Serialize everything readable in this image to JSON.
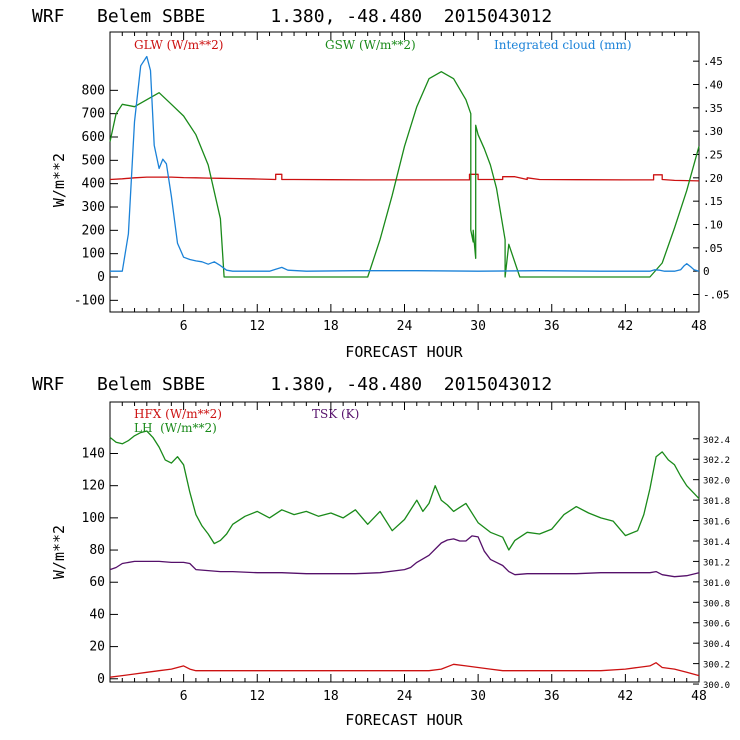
{
  "chart_data": [
    {
      "type": "line",
      "title": "WRF   Belem SBBE      1.380, -48.480  2015043012",
      "xlabel": "FORECAST HOUR",
      "ylabel": "W/m**2",
      "xlim": [
        0,
        48
      ],
      "ylim": [
        -150,
        1050
      ],
      "y2lim": [
        -0.0875,
        0.5125
      ],
      "x_ticks": [
        "6",
        "12",
        "18",
        "24",
        "30",
        "36",
        "42",
        "48"
      ],
      "y_ticks": [
        "800",
        "700",
        "600",
        "500",
        "400",
        "300",
        "200",
        "100",
        "0",
        "-100"
      ],
      "y2_ticks": [
        ".45",
        ".40",
        ".35",
        ".30",
        ".25",
        ".20",
        ".15",
        ".10",
        ".05",
        "0",
        "-.05"
      ],
      "legend": [
        "GLW (W/m**2)",
        "GSW (W/m**2)",
        "Integrated cloud (mm)"
      ],
      "colors": {
        "GLW": "#cc1111",
        "GSW": "#1a8a1a",
        "CLD": "#1b82d8"
      },
      "series": [
        {
          "name": "GLW (W/m**2)",
          "axis": "left",
          "x": [
            0,
            1,
            2,
            3,
            4,
            5,
            6,
            7,
            8,
            9,
            10,
            12,
            13.5,
            13.5,
            14,
            14,
            15,
            18,
            21,
            24,
            26,
            28,
            29.3,
            29.3,
            30,
            30,
            31,
            32,
            32,
            33,
            34,
            34,
            35,
            38,
            42,
            44.3,
            44.3,
            45,
            45,
            46,
            48
          ],
          "y": [
            418,
            421,
            425,
            428,
            428,
            428,
            426,
            425,
            424,
            423,
            422,
            420,
            418,
            440,
            440,
            418,
            418,
            417,
            416,
            416,
            416,
            416,
            416,
            440,
            440,
            418,
            418,
            418,
            430,
            430,
            418,
            425,
            418,
            417,
            416,
            416,
            438,
            438,
            418,
            414,
            412
          ]
        },
        {
          "name": "GSW (W/m**2)",
          "axis": "left",
          "x": [
            0,
            0.5,
            1,
            2,
            3,
            4,
            5,
            6,
            7,
            8,
            9,
            9.3,
            10,
            12,
            14,
            16,
            18,
            20,
            21,
            22,
            23,
            24,
            25,
            26,
            27,
            28,
            29,
            29.4,
            29.4,
            29.6,
            29.6,
            29.8,
            29.8,
            30,
            30.5,
            31,
            31.5,
            32.2,
            32.2,
            32.5,
            33.4,
            35,
            40,
            44,
            45,
            46,
            47,
            48
          ],
          "y": [
            580,
            700,
            740,
            730,
            760,
            790,
            740,
            690,
            610,
            480,
            250,
            0,
            0,
            0,
            0,
            0,
            0,
            0,
            0,
            160,
            350,
            560,
            730,
            850,
            880,
            850,
            760,
            700,
            200,
            150,
            200,
            80,
            650,
            610,
            550,
            480,
            380,
            160,
            0,
            140,
            0,
            0,
            0,
            0,
            60,
            210,
            370,
            560
          ]
        },
        {
          "name": "Integrated cloud (mm)",
          "axis": "right",
          "x": [
            0,
            1,
            1.5,
            2,
            2.5,
            3,
            3.3,
            3.6,
            4,
            4.3,
            4.6,
            5,
            5.5,
            6,
            6.5,
            7,
            7.5,
            8,
            8.5,
            9,
            9.5,
            10,
            13,
            13.5,
            14,
            14.5,
            16,
            20,
            25,
            30,
            35,
            40,
            44,
            44.4,
            44.8,
            45.2,
            46,
            46.5,
            46.8,
            47,
            47.3,
            47.6,
            48
          ],
          "y": [
            0,
            0,
            0.08,
            0.32,
            0.44,
            0.46,
            0.43,
            0.27,
            0.22,
            0.24,
            0.23,
            0.16,
            0.06,
            0.03,
            0.025,
            0.022,
            0.02,
            0.015,
            0.02,
            0.012,
            0.002,
            0,
            0,
            0.004,
            0.008,
            0.002,
            0,
            0.001,
            0.001,
            0,
            0.001,
            0,
            0,
            0.003,
            0.002,
            0,
            0,
            0.003,
            0.012,
            0.016,
            0.01,
            0.003,
            0
          ]
        }
      ]
    },
    {
      "type": "line",
      "title": "WRF   Belem SBBE      1.380, -48.480  2015043012",
      "xlabel": "FORECAST HOUR",
      "ylabel": "W/m**2",
      "xlim": [
        0,
        48
      ],
      "ylim": [
        -2,
        172
      ],
      "y2lim": [
        300.02,
        302.76
      ],
      "x_ticks": [
        "6",
        "12",
        "18",
        "24",
        "30",
        "36",
        "42",
        "48"
      ],
      "y_ticks": [
        "140",
        "120",
        "100",
        "80",
        "60",
        "40",
        "20",
        "0"
      ],
      "y2_ticks": [
        "302.4",
        "302.2",
        "302.0",
        "301.8",
        "301.6",
        "301.4",
        "301.2",
        "301.0",
        "300.8",
        "300.6",
        "300.4",
        "300.2",
        "300.0"
      ],
      "legend": [
        "HFX (W/m**2)",
        "LH  (W/m**2)",
        "TSK (K)"
      ],
      "colors": {
        "HFX": "#cc1111",
        "LH": "#1a8a1a",
        "TSK": "#55106a"
      },
      "series": [
        {
          "name": "HFX (W/m**2)",
          "axis": "left",
          "x": [
            0,
            1,
            2,
            3,
            4,
            5,
            5.5,
            6,
            6.5,
            7,
            8,
            10,
            12,
            14,
            16,
            18,
            20,
            22,
            24,
            26,
            27,
            28,
            29,
            30,
            31,
            32,
            34,
            36,
            38,
            40,
            42,
            43,
            44,
            44.5,
            45,
            46,
            47,
            48
          ],
          "y": [
            1,
            2,
            3,
            4,
            5,
            6,
            7,
            8,
            6,
            5,
            5,
            5,
            5,
            5,
            5,
            5,
            5,
            5,
            5,
            5,
            6,
            9,
            8,
            7,
            6,
            5,
            5,
            5,
            5,
            5,
            6,
            7,
            8,
            10,
            7,
            6,
            4,
            2
          ]
        },
        {
          "name": "LH  (W/m**2)",
          "axis": "left",
          "x": [
            0,
            0.5,
            1,
            1.5,
            2,
            2.5,
            3,
            3.5,
            4,
            4.5,
            5,
            5.5,
            6,
            6.5,
            7,
            7.5,
            8,
            8.5,
            9,
            9.5,
            10,
            11,
            12,
            13,
            14,
            15,
            16,
            17,
            18,
            19,
            20,
            21,
            22,
            23,
            24,
            25,
            25.5,
            26,
            26.5,
            27,
            27.5,
            28,
            29,
            30,
            31,
            32,
            32.5,
            33,
            34,
            35,
            36,
            37,
            38,
            39,
            40,
            41,
            42,
            43,
            43.5,
            44,
            44.5,
            45,
            45.5,
            46,
            46.5,
            47,
            48
          ],
          "y": [
            150,
            147,
            146,
            148,
            151,
            153,
            154,
            150,
            144,
            136,
            134,
            138,
            133,
            116,
            102,
            95,
            90,
            84,
            86,
            90,
            96,
            101,
            104,
            100,
            105,
            102,
            104,
            101,
            103,
            100,
            105,
            96,
            104,
            92,
            99,
            111,
            104,
            109,
            120,
            111,
            108,
            104,
            109,
            97,
            91,
            88,
            80,
            86,
            91,
            90,
            93,
            102,
            107,
            103,
            100,
            98,
            89,
            92,
            102,
            118,
            138,
            141,
            136,
            133,
            126,
            120,
            112
          ]
        },
        {
          "name": "TSK (K)",
          "axis": "right",
          "x": [
            0,
            0.5,
            1,
            2,
            3,
            4,
            5,
            6,
            6.5,
            7,
            8,
            9,
            10,
            12,
            14,
            16,
            18,
            20,
            22,
            24,
            24.5,
            25,
            26,
            27,
            27.5,
            28,
            28.5,
            29,
            29.5,
            30,
            30.5,
            31,
            31.5,
            32,
            32.5,
            33,
            34,
            36,
            38,
            40,
            42,
            44,
            44.5,
            45,
            46,
            47,
            48
          ],
          "y": [
            301.12,
            301.14,
            301.18,
            301.2,
            301.2,
            301.2,
            301.19,
            301.19,
            301.18,
            301.12,
            301.11,
            301.1,
            301.1,
            301.09,
            301.09,
            301.08,
            301.08,
            301.08,
            301.09,
            301.12,
            301.14,
            301.19,
            301.26,
            301.38,
            301.41,
            301.42,
            301.4,
            301.4,
            301.45,
            301.44,
            301.3,
            301.22,
            301.19,
            301.16,
            301.1,
            301.07,
            301.08,
            301.08,
            301.08,
            301.09,
            301.09,
            301.09,
            301.1,
            301.07,
            301.05,
            301.06,
            301.09
          ]
        }
      ]
    }
  ]
}
